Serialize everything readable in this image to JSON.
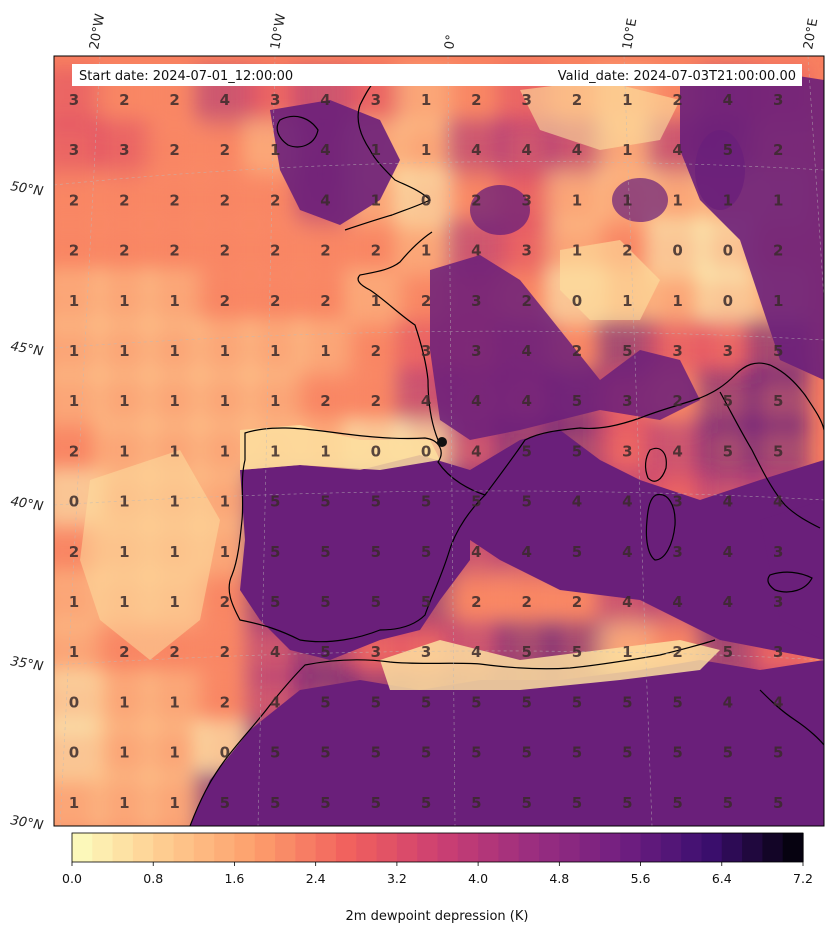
{
  "header": {
    "start_date": "Start date: 2024-07-01_12:00:00",
    "valid_date": "Valid_date: 2024-07-03T21:00:00.00"
  },
  "lon_labels": [
    "20°W",
    "10°W",
    "0°",
    "10°E",
    "20°E"
  ],
  "lat_labels": [
    "50°N",
    "45°N",
    "40°N",
    "35°N",
    "30°N"
  ],
  "value_grid": [
    [
      3,
      2,
      2,
      4,
      3,
      4,
      3,
      1,
      2,
      3,
      2,
      1,
      2,
      4,
      3
    ],
    [
      3,
      3,
      2,
      2,
      1,
      4,
      1,
      1,
      4,
      4,
      4,
      1,
      4,
      5,
      2
    ],
    [
      2,
      2,
      2,
      2,
      2,
      4,
      1,
      0,
      2,
      3,
      1,
      1,
      1,
      1,
      1
    ],
    [
      2,
      2,
      2,
      2,
      2,
      2,
      2,
      1,
      4,
      3,
      1,
      2,
      0,
      0,
      2
    ],
    [
      1,
      1,
      1,
      2,
      2,
      2,
      1,
      2,
      3,
      2,
      0,
      1,
      1,
      0,
      1
    ],
    [
      1,
      1,
      1,
      1,
      1,
      1,
      2,
      3,
      3,
      4,
      2,
      5,
      3,
      3,
      5
    ],
    [
      1,
      1,
      1,
      1,
      1,
      2,
      2,
      4,
      4,
      4,
      5,
      3,
      2,
      5,
      5
    ],
    [
      2,
      1,
      1,
      1,
      1,
      1,
      0,
      0,
      4,
      5,
      5,
      3,
      4,
      5,
      5
    ],
    [
      0,
      1,
      1,
      1,
      5,
      5,
      5,
      5,
      5,
      5,
      4,
      4,
      3,
      4,
      4
    ],
    [
      2,
      1,
      1,
      1,
      5,
      5,
      5,
      5,
      4,
      4,
      5,
      4,
      3,
      4,
      3
    ],
    [
      1,
      1,
      1,
      2,
      5,
      5,
      5,
      5,
      2,
      2,
      2,
      4,
      4,
      4,
      3
    ],
    [
      1,
      2,
      2,
      2,
      4,
      5,
      3,
      3,
      4,
      5,
      5,
      1,
      2,
      5,
      3
    ],
    [
      0,
      1,
      1,
      2,
      4,
      5,
      5,
      5,
      5,
      5,
      5,
      5,
      5,
      4,
      4
    ],
    [
      0,
      1,
      1,
      0,
      5,
      5,
      5,
      5,
      5,
      5,
      5,
      5,
      5,
      5,
      5
    ],
    [
      1,
      1,
      1,
      5,
      5,
      5,
      5,
      5,
      5,
      5,
      5,
      5,
      5,
      5,
      5
    ]
  ],
  "colorbar": {
    "label": "2m dewpoint depression (K)",
    "min": 0.0,
    "max": 7.2,
    "step": 0.2,
    "tick_labels": [
      "0.0",
      "0.8",
      "1.6",
      "2.4",
      "3.2",
      "4.0",
      "4.8",
      "5.6",
      "6.4",
      "7.2"
    ],
    "colormap": "magma_r"
  }
}
